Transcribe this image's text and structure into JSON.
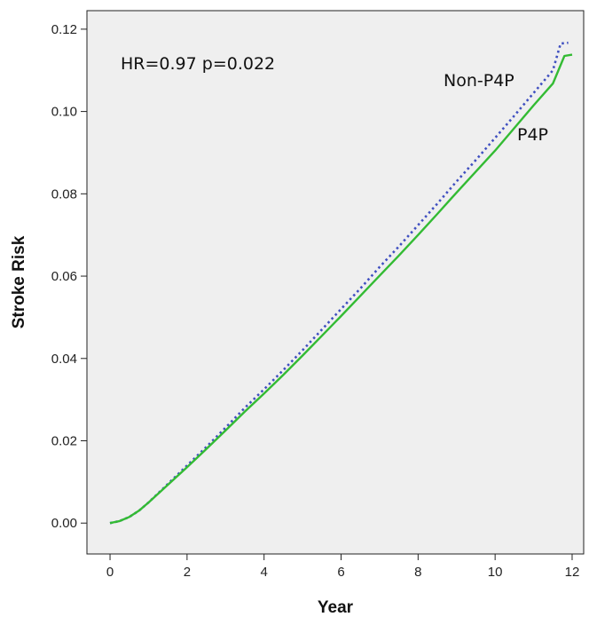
{
  "chart_data": {
    "type": "line",
    "title": "",
    "xlabel": "Year",
    "ylabel": "Stroke Risk",
    "xlim": [
      -0.6,
      12.3
    ],
    "ylim": [
      -0.0075,
      0.1245
    ],
    "xticks": [
      0,
      2,
      4,
      6,
      8,
      10,
      12
    ],
    "xtick_labels": [
      "0",
      "2",
      "4",
      "6",
      "8",
      "10",
      "12"
    ],
    "yticks": [
      0,
      0.02,
      0.04,
      0.06,
      0.08,
      0.1,
      0.12
    ],
    "ytick_labels": [
      "0.00",
      "0.02",
      "0.04",
      "0.06",
      "0.08",
      "0.10",
      "0.12"
    ],
    "grid": false,
    "background": "#efefef",
    "annotation": "HR=0.97  p=0.022",
    "series": [
      {
        "name": "Non-P4P",
        "color": "#3f4fc0",
        "style": "dotted",
        "x": [
          0,
          0.25,
          0.5,
          0.75,
          1,
          1.5,
          2,
          2.5,
          3,
          3.5,
          4,
          4.5,
          5,
          5.5,
          6,
          6.5,
          7,
          7.5,
          8,
          8.5,
          9,
          9.5,
          10,
          10.5,
          11,
          11.5,
          11.7,
          11.9
        ],
        "y": [
          0,
          0.0005,
          0.0015,
          0.003,
          0.005,
          0.0095,
          0.014,
          0.0185,
          0.0232,
          0.028,
          0.0325,
          0.0372,
          0.042,
          0.047,
          0.052,
          0.057,
          0.0622,
          0.0672,
          0.0724,
          0.0776,
          0.083,
          0.0882,
          0.0936,
          0.099,
          0.1045,
          0.11,
          0.1165,
          0.1167
        ]
      },
      {
        "name": "P4P",
        "color": "#33bb33",
        "style": "solid",
        "x": [
          0,
          0.25,
          0.5,
          0.75,
          1,
          1.5,
          2,
          2.5,
          3,
          3.5,
          4,
          4.5,
          5,
          5.5,
          6,
          6.5,
          7,
          7.5,
          8,
          8.5,
          9,
          9.5,
          10,
          10.5,
          11,
          11.5,
          11.8,
          12
        ],
        "y": [
          0,
          0.0005,
          0.0015,
          0.003,
          0.005,
          0.0093,
          0.0136,
          0.018,
          0.0225,
          0.0271,
          0.0315,
          0.036,
          0.0407,
          0.0455,
          0.0503,
          0.0552,
          0.0601,
          0.065,
          0.07,
          0.0751,
          0.0803,
          0.0854,
          0.0905,
          0.096,
          0.1015,
          0.1068,
          0.1135,
          0.1138
        ]
      }
    ]
  }
}
